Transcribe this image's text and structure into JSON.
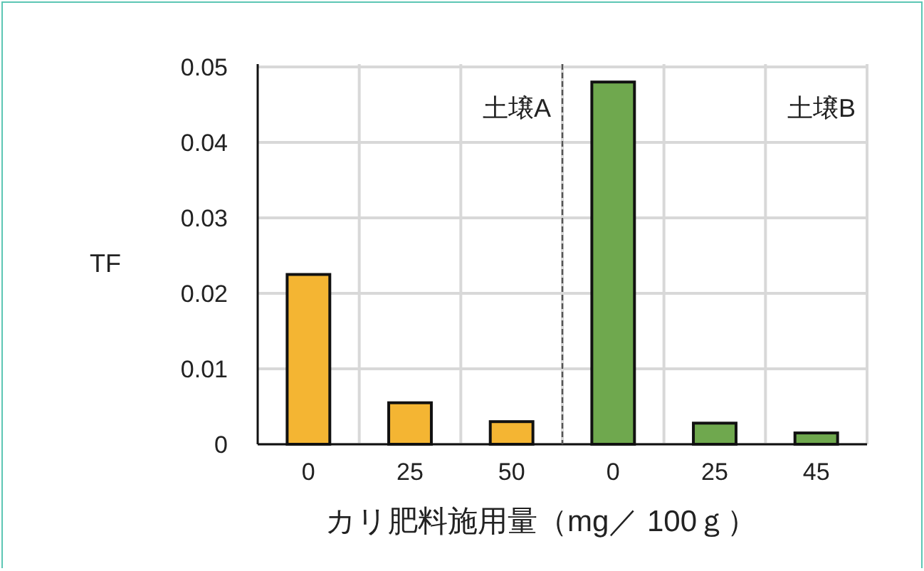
{
  "chart_data": {
    "type": "bar",
    "xlabel": "カリ肥料施用量（mg／ 100ｇ）",
    "ylabel": "TF",
    "categories": [
      "0",
      "25",
      "50",
      "0",
      "25",
      "45"
    ],
    "values": [
      0.0225,
      0.0055,
      0.003,
      0.048,
      0.0028,
      0.0015
    ],
    "colors": [
      "#f4b533",
      "#f4b533",
      "#f4b533",
      "#6fa84e",
      "#6fa84e",
      "#6fa84e"
    ],
    "ylim": [
      0,
      0.05
    ],
    "yticks": [
      0,
      0.01,
      0.02,
      0.03,
      0.04,
      0.05
    ],
    "grid": true,
    "annotations": [
      "土壌A",
      "土壌B"
    ]
  }
}
